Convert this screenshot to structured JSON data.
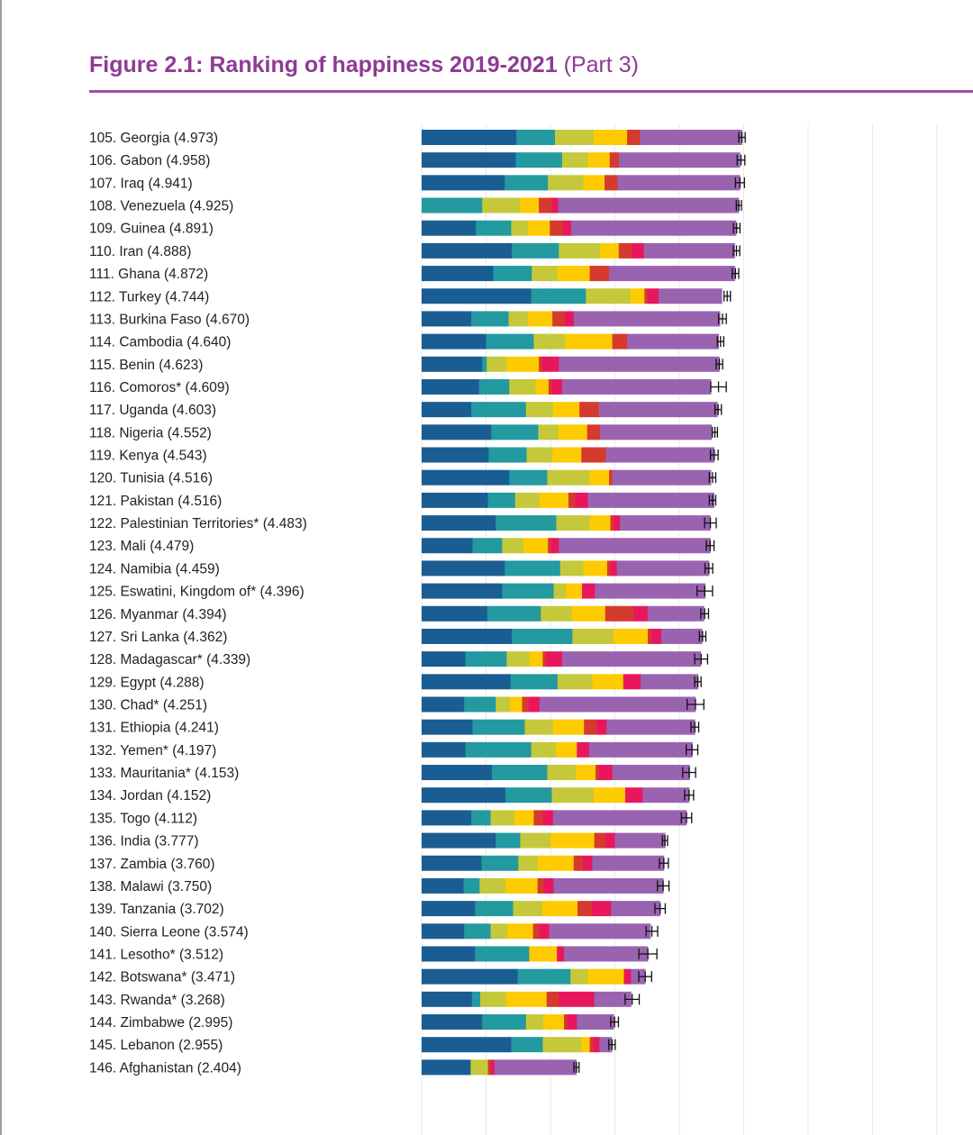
{
  "title": {
    "main": "Figure 2.1: Ranking of happiness 2019-2021",
    "part": "(Part 3)"
  },
  "colors": {
    "title": "#8e3b95",
    "rule": "#a54aa5",
    "segments": [
      "#1a5d93",
      "#2399a0",
      "#c5c83a",
      "#fdcb00",
      "#d53a2e",
      "#e8175d",
      "#9a63b0"
    ]
  },
  "chart_data": {
    "type": "bar",
    "orientation": "horizontal",
    "stacked": true,
    "segment_order": [
      "seg1",
      "seg2",
      "seg3",
      "seg4",
      "seg5",
      "seg6",
      "seg7"
    ],
    "grid": true,
    "error_bars": true,
    "rows": [
      {
        "label": "105.  Georgia (4.973)",
        "score": 4.973,
        "ci": 0.05,
        "segments": [
          1.47,
          0.6,
          0.6,
          0.52,
          0.2,
          0.0,
          1.58
        ]
      },
      {
        "label": "106.  Gabon (4.958)",
        "score": 4.958,
        "ci": 0.06,
        "segments": [
          1.46,
          0.72,
          0.4,
          0.34,
          0.14,
          0.0,
          1.88
        ]
      },
      {
        "label": "107.  Iraq (4.941)",
        "score": 4.941,
        "ci": 0.07,
        "segments": [
          1.29,
          0.67,
          0.55,
          0.33,
          0.2,
          0.0,
          1.9
        ]
      },
      {
        "label": "108.  Venezuela (4.925)",
        "score": 4.925,
        "ci": 0.04,
        "segments": [
          0.0,
          0.94,
          0.59,
          0.29,
          0.2,
          0.1,
          2.8
        ]
      },
      {
        "label": "109.  Guinea (4.891)",
        "score": 4.891,
        "ci": 0.05,
        "segments": [
          0.84,
          0.55,
          0.26,
          0.34,
          0.2,
          0.13,
          2.56
        ]
      },
      {
        "label": "110.  Iran (4.888)",
        "score": 4.888,
        "ci": 0.05,
        "segments": [
          1.4,
          0.73,
          0.64,
          0.29,
          0.2,
          0.19,
          1.41
        ]
      },
      {
        "label": "111.  Ghana (4.872)",
        "score": 4.872,
        "ci": 0.05,
        "segments": [
          1.11,
          0.6,
          0.4,
          0.5,
          0.3,
          0.0,
          1.95
        ]
      },
      {
        "label": "112.  Turkey (4.744)",
        "score": 4.744,
        "ci": 0.05,
        "segments": [
          1.7,
          0.85,
          0.69,
          0.22,
          0.05,
          0.17,
          0.98
        ]
      },
      {
        "label": "113.  Burkina Faso (4.670)",
        "score": 4.67,
        "ci": 0.06,
        "segments": [
          0.77,
          0.58,
          0.3,
          0.38,
          0.19,
          0.14,
          2.27
        ]
      },
      {
        "label": "114.  Cambodia (4.640)",
        "score": 4.64,
        "ci": 0.05,
        "segments": [
          1.0,
          0.74,
          0.49,
          0.73,
          0.23,
          0.0,
          1.42
        ]
      },
      {
        "label": "115.  Benin (4.623)",
        "score": 4.623,
        "ci": 0.05,
        "segments": [
          0.94,
          0.07,
          0.31,
          0.5,
          0.05,
          0.26,
          2.49
        ]
      },
      {
        "label": "116.  Comoros* (4.609)",
        "score": 4.609,
        "ci": 0.12,
        "segments": [
          0.89,
          0.47,
          0.41,
          0.2,
          0.05,
          0.16,
          2.31
        ]
      },
      {
        "label": "117.  Uganda (4.603)",
        "score": 4.603,
        "ci": 0.05,
        "segments": [
          0.77,
          0.85,
          0.42,
          0.41,
          0.3,
          0.0,
          1.84
        ]
      },
      {
        "label": "118.  Nigeria (4.552)",
        "score": 4.552,
        "ci": 0.04,
        "segments": [
          1.08,
          0.73,
          0.31,
          0.45,
          0.2,
          0.0,
          1.73
        ]
      },
      {
        "label": "119.  Kenya (4.543)",
        "score": 4.543,
        "ci": 0.06,
        "segments": [
          1.04,
          0.59,
          0.4,
          0.45,
          0.38,
          0.0,
          1.68
        ]
      },
      {
        "label": "120.  Tunisia (4.516)",
        "score": 4.516,
        "ci": 0.05,
        "segments": [
          1.36,
          0.59,
          0.66,
          0.3,
          0.05,
          0.0,
          1.53
        ]
      },
      {
        "label": "121.  Pakistan (4.516)",
        "score": 4.516,
        "ci": 0.05,
        "segments": [
          1.03,
          0.42,
          0.38,
          0.45,
          0.1,
          0.2,
          1.96
        ]
      },
      {
        "label": "122.  Palestinian Territories* (4.483)",
        "score": 4.483,
        "ci": 0.09,
        "segments": [
          1.15,
          0.94,
          0.52,
          0.32,
          0.05,
          0.1,
          1.4
        ]
      },
      {
        "label": "123.  Mali (4.479)",
        "score": 4.479,
        "ci": 0.06,
        "segments": [
          0.79,
          0.46,
          0.33,
          0.38,
          0.05,
          0.12,
          2.35
        ]
      },
      {
        "label": "124.  Namibia (4.459)",
        "score": 4.459,
        "ci": 0.06,
        "segments": [
          1.29,
          0.86,
          0.36,
          0.37,
          0.05,
          0.1,
          1.43
        ]
      },
      {
        "label": "125.  Eswatini, Kingdom of* (4.396)",
        "score": 4.396,
        "ci": 0.12,
        "segments": [
          1.25,
          0.8,
          0.19,
          0.25,
          0.0,
          0.2,
          1.71
        ]
      },
      {
        "label": "126.  Myanmar (4.394)",
        "score": 4.394,
        "ci": 0.06,
        "segments": [
          1.02,
          0.83,
          0.48,
          0.52,
          0.44,
          0.22,
          0.87
        ]
      },
      {
        "label": "127.  Sri Lanka (4.362)",
        "score": 4.362,
        "ci": 0.05,
        "segments": [
          1.4,
          0.94,
          0.64,
          0.53,
          0.05,
          0.16,
          0.63
        ]
      },
      {
        "label": "128.  Madagascar* (4.339)",
        "score": 4.339,
        "ci": 0.1,
        "segments": [
          0.68,
          0.64,
          0.35,
          0.21,
          0.05,
          0.25,
          2.15
        ]
      },
      {
        "label": "129.  Egypt (4.288)",
        "score": 4.288,
        "ci": 0.05,
        "segments": [
          1.38,
          0.73,
          0.54,
          0.48,
          0.0,
          0.27,
          0.89
        ]
      },
      {
        "label": "130.  Chad* (4.251)",
        "score": 4.251,
        "ci": 0.13,
        "segments": [
          0.66,
          0.49,
          0.22,
          0.19,
          0.1,
          0.17,
          2.42
        ]
      },
      {
        "label": "131.  Ethiopia (4.241)",
        "score": 4.241,
        "ci": 0.06,
        "segments": [
          0.79,
          0.81,
          0.44,
          0.48,
          0.2,
          0.15,
          1.37
        ]
      },
      {
        "label": "132.  Yemen* (4.197)",
        "score": 4.197,
        "ci": 0.09,
        "segments": [
          0.68,
          1.02,
          0.39,
          0.32,
          0.0,
          0.19,
          1.6
        ]
      },
      {
        "label": "133.  Mauritania* (4.153)",
        "score": 4.153,
        "ci": 0.1,
        "segments": [
          1.09,
          0.86,
          0.44,
          0.31,
          0.05,
          0.21,
          1.2
        ]
      },
      {
        "label": "134.  Jordan (4.152)",
        "score": 4.152,
        "ci": 0.07,
        "segments": [
          1.3,
          0.72,
          0.65,
          0.49,
          0.0,
          0.27,
          0.72
        ]
      },
      {
        "label": "135.  Togo (4.112)",
        "score": 4.112,
        "ci": 0.08,
        "segments": [
          0.77,
          0.3,
          0.37,
          0.3,
          0.14,
          0.16,
          2.07
        ]
      },
      {
        "label": "136.  India (3.777)",
        "score": 3.777,
        "ci": 0.04,
        "segments": [
          1.15,
          0.38,
          0.47,
          0.68,
          0.18,
          0.14,
          0.78
        ]
      },
      {
        "label": "137.  Zambia (3.760)",
        "score": 3.76,
        "ci": 0.07,
        "segments": [
          0.93,
          0.57,
          0.3,
          0.56,
          0.14,
          0.15,
          1.11
        ]
      },
      {
        "label": "138.  Malawi (3.750)",
        "score": 3.75,
        "ci": 0.09,
        "segments": [
          0.65,
          0.25,
          0.4,
          0.5,
          0.1,
          0.15,
          1.7
        ]
      },
      {
        "label": "139.  Tanzania (3.702)",
        "score": 3.702,
        "ci": 0.08,
        "segments": [
          0.83,
          0.59,
          0.45,
          0.55,
          0.22,
          0.3,
          0.76
        ]
      },
      {
        "label": "140.  Sierra Leone (3.574)",
        "score": 3.574,
        "ci": 0.09,
        "segments": [
          0.66,
          0.41,
          0.26,
          0.4,
          0.1,
          0.15,
          1.57
        ]
      },
      {
        "label": "141.  Lesotho* (3.512)",
        "score": 3.512,
        "ci": 0.14,
        "segments": [
          0.83,
          0.84,
          0.0,
          0.43,
          0.0,
          0.11,
          1.3
        ]
      },
      {
        "label": "142.  Botswana* (3.471)",
        "score": 3.471,
        "ci": 0.1,
        "segments": [
          1.49,
          0.82,
          0.27,
          0.56,
          0.0,
          0.11,
          0.22
        ]
      },
      {
        "label": "143.  Rwanda* (3.268)",
        "score": 3.268,
        "ci": 0.11,
        "segments": [
          0.78,
          0.13,
          0.4,
          0.63,
          0.19,
          0.55,
          0.57
        ]
      },
      {
        "label": "144.  Zimbabwe (2.995)",
        "score": 2.995,
        "ci": 0.06,
        "segments": [
          0.94,
          0.68,
          0.27,
          0.32,
          0.05,
          0.15,
          0.57
        ]
      },
      {
        "label": "145.  Lebanon (2.955)",
        "score": 2.955,
        "ci": 0.05,
        "segments": [
          1.39,
          0.49,
          0.6,
          0.13,
          0.05,
          0.1,
          0.19
        ]
      },
      {
        "label": "146.  Afghanistan (2.404)",
        "score": 2.404,
        "ci": 0.04,
        "segments": [
          0.76,
          0.0,
          0.27,
          0.0,
          0.05,
          0.05,
          1.27
        ]
      }
    ]
  }
}
